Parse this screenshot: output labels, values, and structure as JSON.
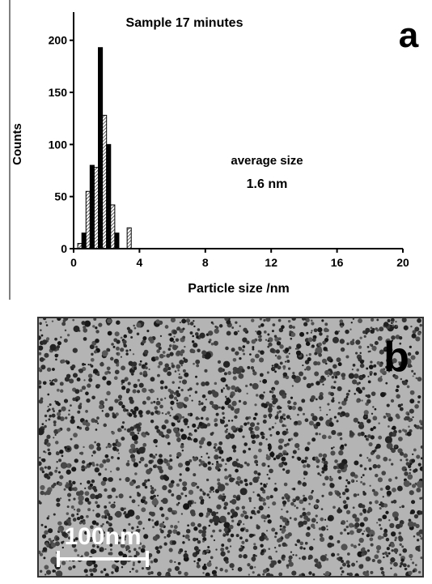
{
  "chart_data": {
    "type": "histogram",
    "title": "Sample 17 minutes",
    "panel_label": "a",
    "x_label": "Particle size /nm",
    "y_label": "Counts",
    "annotations": [
      "average size",
      "1.6 nm"
    ],
    "bins": [
      0.25,
      0.5,
      0.75,
      1.0,
      1.25,
      1.5,
      1.75,
      2.0,
      2.25,
      2.5,
      2.75,
      3.0,
      3.25,
      3.5
    ],
    "values": [
      5,
      15,
      55,
      80,
      78,
      193,
      128,
      100,
      42,
      15,
      0,
      0,
      20
    ],
    "color": "#000000",
    "xlim": [
      0,
      20
    ],
    "xticks": [
      0,
      4,
      8,
      12,
      16,
      20
    ],
    "ylim": [
      0,
      227
    ],
    "yticks": [
      0,
      50,
      100,
      150,
      200
    ]
  },
  "image_panel": {
    "panel_label": "b",
    "scale_bar": "100nm"
  }
}
